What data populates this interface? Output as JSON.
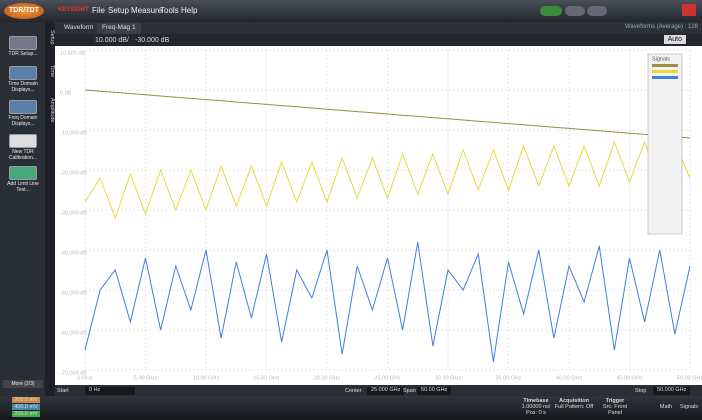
{
  "titlebar": {
    "logo": "TDR/TDT",
    "brand": "KEYSIGHT",
    "menu": [
      "File",
      "Setup",
      "Measure",
      "Tools",
      "Help"
    ],
    "status": "Waveforms (Average) : 128"
  },
  "tabs": [
    "Waveform",
    "Freq-Mag 1"
  ],
  "toolbar": {
    "scale": "10.000 dB/",
    "offset": "-30.000 dB",
    "autoscale": "Auto"
  },
  "side_tabs": [
    "Setup",
    "Time",
    "Amplitude"
  ],
  "left_buttons": [
    "TDR Setup...",
    "Time Domain Displays...",
    "Freq Domain Displays...",
    "New TDR Calibration...",
    "Add Limit Line Test..."
  ],
  "more": "More (2/3)",
  "chart_data": {
    "type": "line",
    "legend_title": "Signals",
    "grid": true,
    "x": [
      0,
      1.25,
      2.5,
      3.75,
      5,
      6.25,
      7.5,
      8.75,
      10,
      11.25,
      12.5,
      13.75,
      15,
      16.25,
      17.5,
      18.75,
      20,
      21.25,
      22.5,
      23.75,
      25,
      26.25,
      27.5,
      28.75,
      30,
      31.25,
      32.5,
      33.75,
      35,
      36.25,
      37.5,
      38.75,
      40,
      41.25,
      42.5,
      43.75,
      45,
      46.25,
      47.5,
      48.75,
      50
    ],
    "series": [
      {
        "color": "#9a8f3c",
        "values": [
          0,
          -0.3,
          -0.6,
          -0.9,
          -1.2,
          -1.5,
          -1.8,
          -2.1,
          -2.4,
          -2.7,
          -3,
          -3.3,
          -3.6,
          -3.9,
          -4.2,
          -4.5,
          -4.8,
          -5.1,
          -5.4,
          -5.7,
          -6,
          -6.3,
          -6.6,
          -6.9,
          -7.2,
          -7.5,
          -7.8,
          -8.1,
          -8.4,
          -8.7,
          -9,
          -9.3,
          -9.6,
          -9.9,
          -10.2,
          -10.5,
          -10.8,
          -11.1,
          -11.4,
          -11.7,
          -12
        ]
      },
      {
        "color": "#e2dc3a",
        "values": [
          -28,
          -22,
          -32,
          -21,
          -31,
          -20,
          -30,
          -20,
          -30,
          -19,
          -29,
          -19,
          -29,
          -18,
          -28,
          -18,
          -28,
          -17,
          -27,
          -17,
          -27,
          -16,
          -26,
          -16,
          -26,
          -15,
          -25,
          -15,
          -25,
          -14,
          -24,
          -14,
          -24,
          -14,
          -24,
          -13,
          -23,
          -13,
          -23,
          -13,
          -22
        ]
      },
      {
        "color": "#3f7fe0",
        "values": [
          -65,
          -50,
          -45,
          -58,
          -42,
          -60,
          -44,
          -55,
          -40,
          -62,
          -43,
          -57,
          -41,
          -63,
          -45,
          -52,
          -40,
          -66,
          -44,
          -55,
          -42,
          -60,
          -38,
          -64,
          -45,
          -50,
          -41,
          -68,
          -43,
          -56,
          -40,
          -62,
          -44,
          -53,
          -39,
          -65,
          -42,
          -58,
          -40,
          -61,
          -44
        ]
      }
    ],
    "xlim": [
      0,
      50
    ],
    "xticks": [
      {
        "value": 0,
        "label": "0 GHz"
      },
      {
        "value": 5,
        "label": "5.00 GHz"
      },
      {
        "value": 10,
        "label": "10.00 GHz"
      },
      {
        "value": 15,
        "label": "15.00 GHz"
      },
      {
        "value": 20,
        "label": "20.00 GHz"
      },
      {
        "value": 25,
        "label": "25.00 GHz"
      },
      {
        "value": 30,
        "label": "30.00 GHz"
      },
      {
        "value": 35,
        "label": "35.00 GHz"
      },
      {
        "value": 40,
        "label": "40.00 GHz"
      },
      {
        "value": 45,
        "label": "45.00 GHz"
      },
      {
        "value": 50,
        "label": "50.00 GHz"
      }
    ],
    "ylim": [
      -70,
      10
    ],
    "yticks": [
      {
        "value": 10,
        "label": "10.000 dB"
      },
      {
        "value": 0,
        "label": "0 dB"
      },
      {
        "value": -10,
        "label": "-10.000 dB"
      },
      {
        "value": -20,
        "label": "-20.000 dB"
      },
      {
        "value": -30,
        "label": "-30.000 dB"
      },
      {
        "value": -40,
        "label": "-40.000 dB"
      },
      {
        "value": -50,
        "label": "-50.000 dB"
      },
      {
        "value": -60,
        "label": "-60.000 dB"
      },
      {
        "value": -70,
        "label": "-70.000 dB"
      }
    ]
  },
  "footer": {
    "start_label": "Start",
    "start": "0 Hz",
    "center_label": "Center",
    "center": "25.000 GHz",
    "span_label": "Span",
    "span": "50.00 GHz",
    "stop_label": "Stop",
    "stop": "50.000 GHz"
  },
  "status": {
    "channels": [
      "200.0 mV",
      "400.0 mV",
      "200.0 mV"
    ],
    "timebase_label": "Timebase",
    "timebase": "1.00000 ns/",
    "timebase_pos": "Pos: 0 s",
    "acq_label": "Acquisition",
    "acq": "Full Pattern: Off",
    "trig_label": "Trigger",
    "trig": "Src: Front Panel",
    "math": "Math",
    "signals": "Signals"
  }
}
